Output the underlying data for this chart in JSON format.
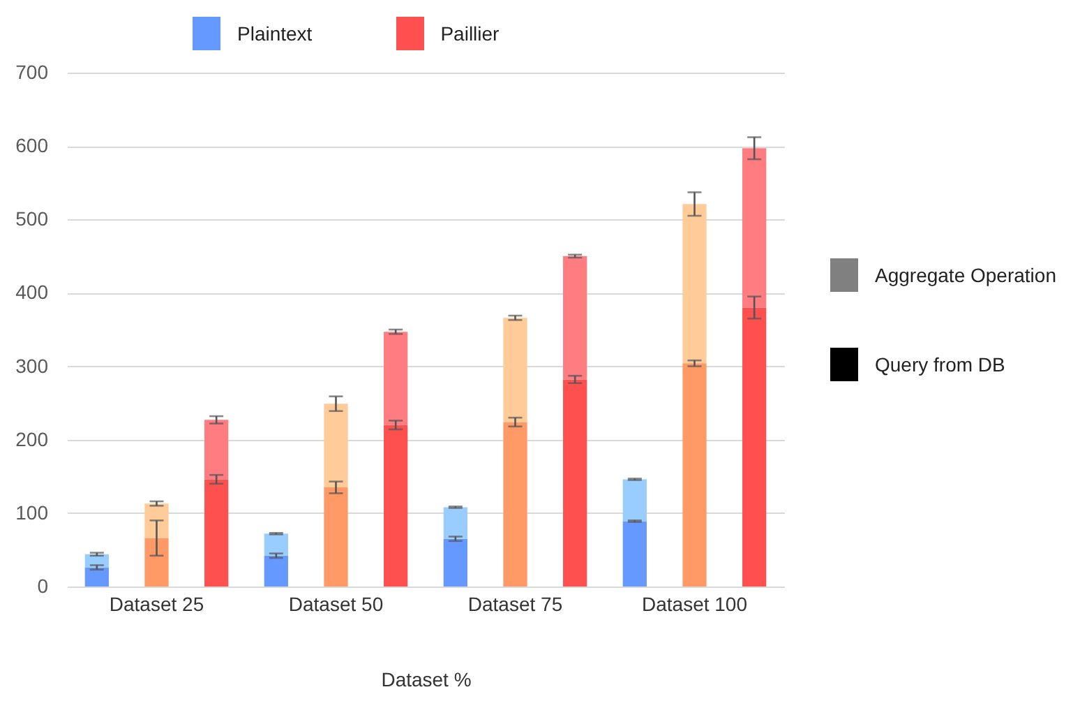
{
  "chart_data": {
    "type": "bar",
    "stacked": true,
    "xlabel": "Dataset %",
    "categories": [
      null,
      "Dataset 25",
      null,
      null,
      "Dataset 50",
      null,
      null,
      "Dataset 75",
      null,
      null,
      "Dataset  100",
      null
    ],
    "series": [
      {
        "name": "Query from DB",
        "color": "#000000",
        "colors": [
          "#6699ff",
          "#ff9966",
          "#ff5050",
          "#6699ff",
          "#ff9966",
          "#ff5050",
          "#6699ff",
          "#ff9966",
          "#ff5050",
          "#6699ff",
          "#ff9966",
          "#ff5050"
        ],
        "values": [
          26,
          66,
          146,
          42,
          135,
          220,
          65,
          224,
          282,
          89,
          304,
          380
        ],
        "errors": [
          3,
          24,
          6,
          3,
          8,
          6,
          3,
          6,
          5,
          1,
          4,
          15
        ]
      },
      {
        "name": "Aggregate Operation",
        "color": "#808080",
        "colors": [
          "#99ccff",
          "#ffcc99",
          "#ff7c80",
          "#99ccff",
          "#ffcc99",
          "#ff7c80",
          "#99ccff",
          "#ffcc99",
          "#ff7c80",
          "#99ccff",
          "#ffcc99",
          "#ff7c80"
        ],
        "values": [
          18,
          47,
          81,
          30,
          114,
          127,
          43,
          142,
          168,
          57,
          217,
          217
        ],
        "errors": [
          2,
          3,
          5,
          1,
          10,
          3,
          1,
          3,
          2,
          1,
          16,
          15
        ]
      }
    ],
    "annotations": [
      "Plaintext",
      "Paillier"
    ],
    "ylim": [
      0,
      700
    ],
    "yticks": [
      0,
      100,
      200,
      300,
      400,
      500,
      600,
      700
    ],
    "grid": "y",
    "legend": "right"
  }
}
